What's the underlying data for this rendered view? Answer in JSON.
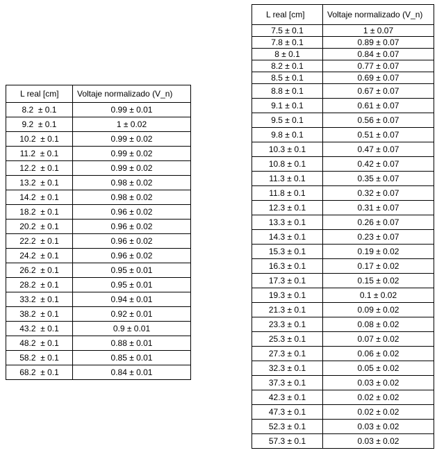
{
  "left_table": {
    "headers": [
      "L real [cm]",
      "Voltaje normalizado (V_n)"
    ],
    "rows": [
      [
        "8.2  ± 0.1",
        "0.99 ± 0.01"
      ],
      [
        "9.2  ± 0.1",
        "1 ± 0.02"
      ],
      [
        "10.2  ± 0.1",
        "0.99 ± 0.02"
      ],
      [
        "11.2  ± 0.1",
        "0.99 ± 0.02"
      ],
      [
        "12.2  ± 0.1",
        "0.99 ± 0.02"
      ],
      [
        "13.2  ± 0.1",
        "0.98 ± 0.02"
      ],
      [
        "14.2  ± 0.1",
        "0.98 ± 0.02"
      ],
      [
        "18.2  ± 0.1",
        "0.96 ± 0.02"
      ],
      [
        "20.2  ± 0.1",
        "0.96 ± 0.02"
      ],
      [
        "22.2  ± 0.1",
        "0.96 ± 0.02"
      ],
      [
        "24.2  ± 0.1",
        "0.96 ± 0.02"
      ],
      [
        "26.2  ± 0.1",
        "0.95 ± 0.01"
      ],
      [
        "28.2  ± 0.1",
        "0.95 ± 0.01"
      ],
      [
        "33.2  ± 0.1",
        "0.94 ± 0.01"
      ],
      [
        "38.2  ± 0.1",
        "0.92 ± 0.01"
      ],
      [
        "43.2  ± 0.1",
        "0.9 ± 0.01"
      ],
      [
        "48.2  ± 0.1",
        "0.88 ± 0.01"
      ],
      [
        "58.2  ± 0.1",
        "0.85 ± 0.01"
      ],
      [
        "68.2  ± 0.1",
        "0.84 ± 0.01"
      ]
    ]
  },
  "right_table": {
    "headers": [
      "L real [cm]",
      "Voltaje normalizado (V_n)"
    ],
    "rows": [
      [
        "7.5 ± 0.1",
        "1 ± 0.07"
      ],
      [
        "7.8 ± 0.1",
        "0.89 ± 0.07"
      ],
      [
        "8 ± 0.1",
        "0.84 ± 0.07"
      ],
      [
        "8.2 ± 0.1",
        "0.77 ± 0.07"
      ],
      [
        "8.5 ± 0.1",
        "0.69 ± 0.07"
      ],
      [
        "8.8 ± 0.1",
        "0.67 ± 0.07"
      ],
      [
        "9.1 ± 0.1",
        "0.61 ± 0.07"
      ],
      [
        "9.5 ± 0.1",
        "0.56 ± 0.07"
      ],
      [
        "9.8 ± 0.1",
        "0.51 ± 0.07"
      ],
      [
        "10.3 ± 0.1",
        "0.47 ± 0.07"
      ],
      [
        "10.8 ± 0.1",
        "0.42 ± 0.07"
      ],
      [
        "11.3 ± 0.1",
        "0.35 ± 0.07"
      ],
      [
        "11.8 ± 0.1",
        "0.32 ± 0.07"
      ],
      [
        "12.3 ± 0.1",
        "0.31 ± 0.07"
      ],
      [
        "13.3 ± 0.1",
        "0.26 ± 0.07"
      ],
      [
        "14.3 ± 0.1",
        "0.23 ± 0.07"
      ],
      [
        "15.3 ± 0.1",
        "0.19 ± 0.02"
      ],
      [
        "16.3 ± 0.1",
        "0.17 ± 0.02"
      ],
      [
        "17.3 ± 0.1",
        "0.15 ± 0.02"
      ],
      [
        "19.3 ± 0.1",
        "0.1 ± 0.02"
      ],
      [
        "21.3 ± 0.1",
        "0.09 ± 0.02"
      ],
      [
        "23.3 ± 0.1",
        "0.08 ± 0.02"
      ],
      [
        "25.3 ± 0.1",
        "0.07 ± 0.02"
      ],
      [
        "27.3 ± 0.1",
        "0.06 ± 0.02"
      ],
      [
        "32.3 ± 0.1",
        "0.05 ± 0.02"
      ],
      [
        "37.3 ± 0.1",
        "0.03 ± 0.02"
      ],
      [
        "42.3 ± 0.1",
        "0.02 ± 0.02"
      ],
      [
        "47.3 ± 0.1",
        "0.02 ± 0.02"
      ],
      [
        "52.3 ± 0.1",
        "0.03 ± 0.02"
      ],
      [
        "57.3 ± 0.1",
        "0.03 ± 0.02"
      ]
    ]
  }
}
